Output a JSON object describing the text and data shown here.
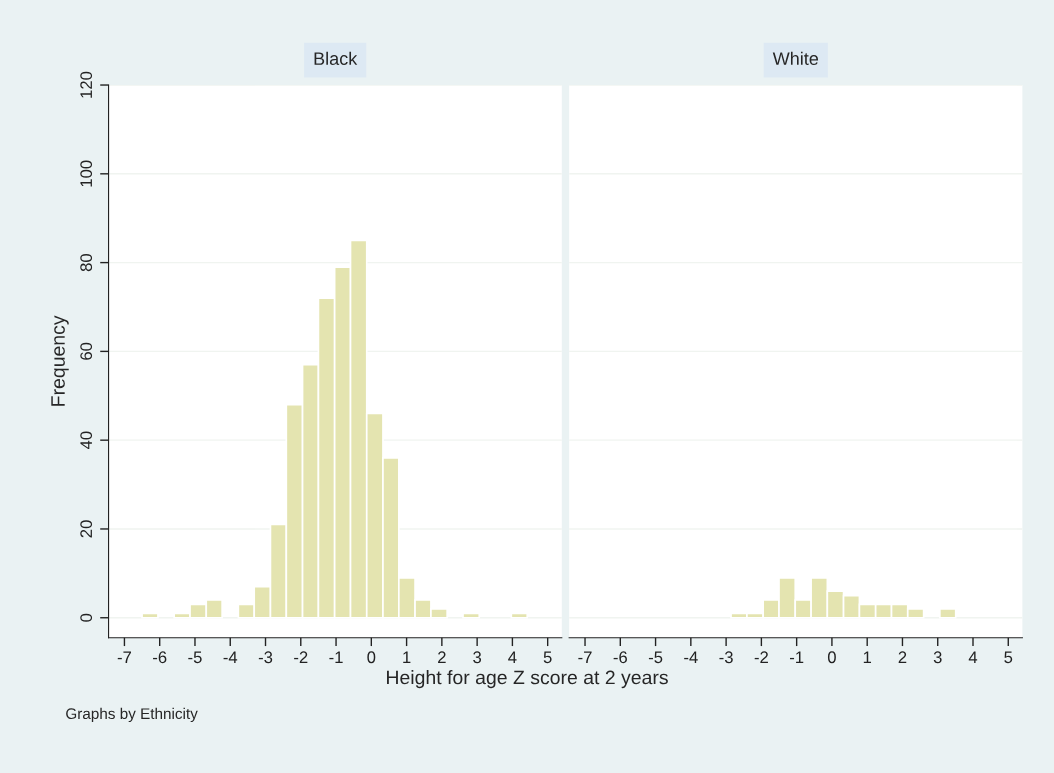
{
  "chart_data": [
    {
      "type": "histogram",
      "title": "Black",
      "ylabel": "Frequency",
      "xlabel": "Height for age Z score at 2 years",
      "annotations": [
        "Graphs by Ethnicity"
      ],
      "color": "#e4e4b0",
      "grid": "y",
      "bins": [
        -6.5,
        -6.05,
        -5.59,
        -5.14,
        -4.68,
        -4.23,
        -3.77,
        -3.32,
        -2.86,
        -2.41,
        -1.95,
        -1.5,
        -1.04,
        -0.59,
        -0.13,
        0.33,
        0.78,
        1.24,
        1.69,
        2.15,
        2.6,
        3.06,
        3.51,
        3.97,
        4.42
      ],
      "values": [
        1,
        0,
        1,
        3,
        4,
        0,
        3,
        7,
        21,
        48,
        57,
        72,
        79,
        85,
        46,
        36,
        9,
        4,
        2,
        0,
        1,
        0,
        0,
        1
      ],
      "xlim": [
        -7.45,
        5.4
      ],
      "xticks": [
        -7,
        -6,
        -5,
        -4,
        -3,
        -2,
        -1,
        0,
        1,
        2,
        3,
        4,
        5
      ],
      "ylim": [
        -4.5,
        120
      ],
      "yticks": [
        0,
        20,
        40,
        60,
        80,
        100,
        120
      ]
    },
    {
      "type": "histogram",
      "title": "White",
      "color": "#e4e4b0",
      "grid": "y",
      "tick_labels": "x",
      "bins": [
        -6.5,
        -6.05,
        -5.59,
        -5.14,
        -4.68,
        -4.23,
        -3.77,
        -3.32,
        -2.86,
        -2.41,
        -1.95,
        -1.5,
        -1.04,
        -0.59,
        -0.13,
        0.33,
        0.78,
        1.24,
        1.69,
        2.15,
        2.6,
        3.06,
        3.51,
        3.97,
        4.42
      ],
      "values": [
        0,
        0,
        0,
        0,
        0,
        0,
        0,
        0,
        1,
        1,
        4,
        9,
        4,
        9,
        6,
        5,
        3,
        3,
        3,
        2,
        0,
        2,
        0,
        0
      ],
      "xlim": [
        -7.45,
        5.4
      ],
      "xticks": [
        -7,
        -6,
        -5,
        -4,
        -3,
        -2,
        -1,
        0,
        1,
        2,
        3,
        4,
        5
      ],
      "ylim": [
        -4.5,
        120
      ],
      "yticks": [
        0,
        20,
        40,
        60,
        80,
        100,
        120
      ]
    }
  ]
}
